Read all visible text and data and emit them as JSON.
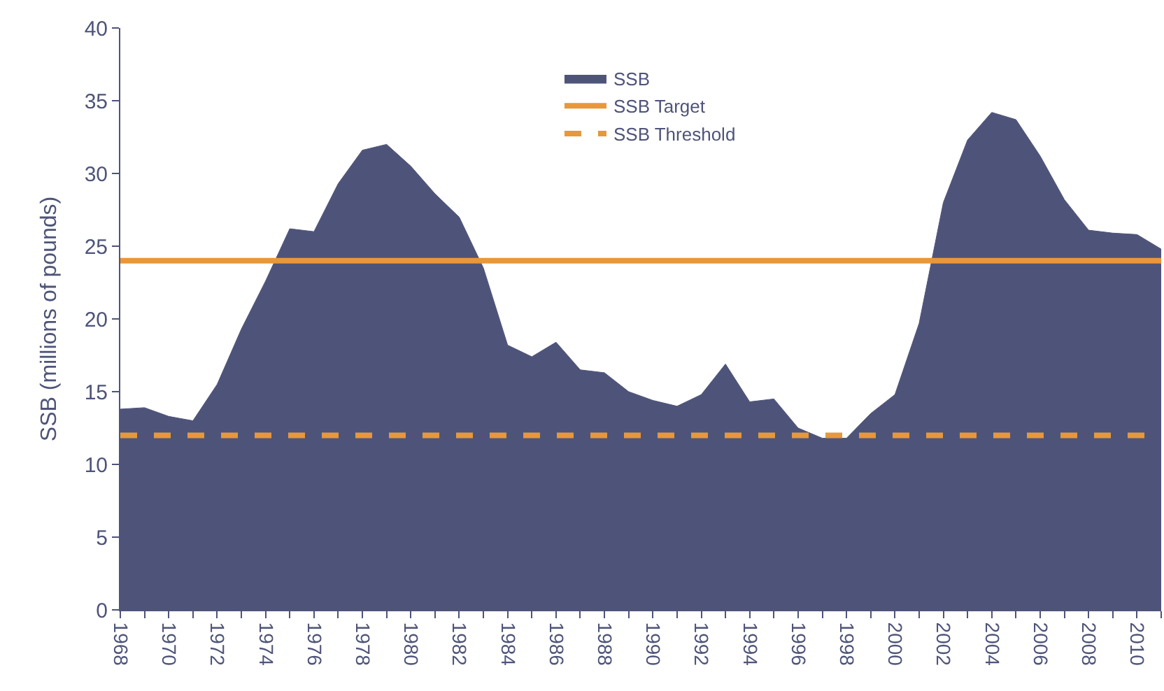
{
  "chart_data": {
    "type": "area",
    "ylabel": "SSB (millions of pounds)",
    "x": [
      1968,
      1969,
      1970,
      1971,
      1972,
      1973,
      1974,
      1975,
      1976,
      1977,
      1978,
      1979,
      1980,
      1981,
      1982,
      1983,
      1984,
      1985,
      1986,
      1987,
      1988,
      1989,
      1990,
      1991,
      1992,
      1993,
      1994,
      1995,
      1996,
      1997,
      1998,
      1999,
      2000,
      2001,
      2002,
      2003,
      2004,
      2005,
      2006,
      2007,
      2008,
      2009,
      2010,
      2011
    ],
    "series": [
      {
        "name": "SSB",
        "color": "#4e5479",
        "values": [
          13.8,
          13.9,
          13.3,
          13.0,
          15.5,
          19.3,
          22.6,
          26.2,
          26.0,
          29.3,
          31.6,
          32.0,
          30.5,
          28.6,
          27.0,
          23.5,
          18.2,
          17.4,
          18.4,
          16.5,
          16.3,
          15.0,
          14.4,
          14.0,
          14.8,
          16.9,
          14.3,
          14.5,
          12.5,
          11.8,
          11.8,
          13.5,
          14.8,
          19.7,
          28.0,
          32.3,
          34.2,
          33.7,
          31.2,
          28.2,
          26.1,
          25.9,
          25.8,
          24.8
        ]
      }
    ],
    "ref_lines": [
      {
        "axis": "y",
        "value": 24,
        "label": "SSB Target",
        "color": "#e8973a",
        "line_style": "solid"
      },
      {
        "axis": "y",
        "value": 12,
        "label": "SSB Threshold",
        "color": "#e8973a",
        "line_style": "dashed"
      }
    ],
    "xlim": [
      1968,
      2011
    ],
    "xticks": [
      1968,
      {
        "value": 1969,
        "label": null
      },
      1970,
      {
        "value": 1971,
        "label": null
      },
      1972,
      {
        "value": 1973,
        "label": null
      },
      1974,
      {
        "value": 1975,
        "label": null
      },
      1976,
      {
        "value": 1977,
        "label": null
      },
      1978,
      {
        "value": 1979,
        "label": null
      },
      1980,
      {
        "value": 1981,
        "label": null
      },
      1982,
      {
        "value": 1983,
        "label": null
      },
      1984,
      {
        "value": 1985,
        "label": null
      },
      1986,
      {
        "value": 1987,
        "label": null
      },
      1988,
      {
        "value": 1989,
        "label": null
      },
      1990,
      {
        "value": 1991,
        "label": null
      },
      1992,
      {
        "value": 1993,
        "label": null
      },
      1994,
      {
        "value": 1995,
        "label": null
      },
      1996,
      {
        "value": 1997,
        "label": null
      },
      1998,
      {
        "value": 1999,
        "label": null
      },
      2000,
      {
        "value": 2001,
        "label": null
      },
      2002,
      {
        "value": 2003,
        "label": null
      },
      2004,
      {
        "value": 2005,
        "label": null
      },
      2006,
      {
        "value": 2007,
        "label": null
      },
      2008,
      {
        "value": 2009,
        "label": null
      },
      2010,
      {
        "value": 2011,
        "label": null
      }
    ],
    "ylim": [
      0,
      40
    ],
    "yticks": [
      0,
      5,
      10,
      15,
      20,
      25,
      30,
      35,
      40
    ],
    "legend": "top",
    "marker": "none"
  }
}
